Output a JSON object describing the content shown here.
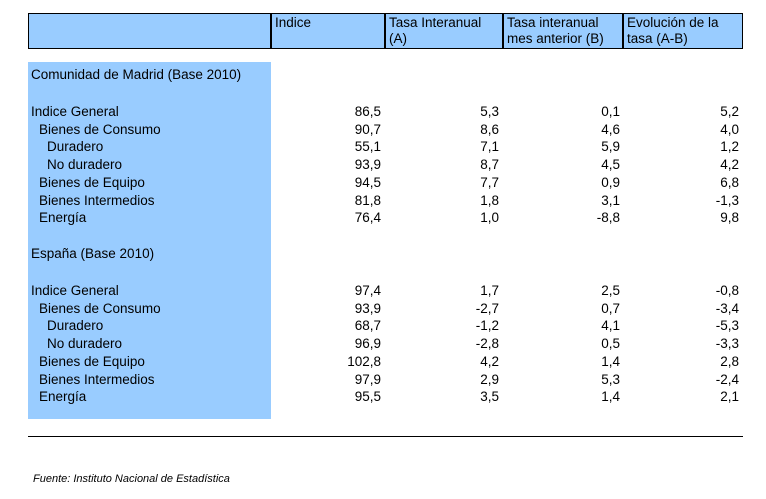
{
  "headers": [
    "",
    "Indice",
    "Tasa Interanual (A)",
    "Tasa interanual mes anterior (B)",
    "Evolución de la tasa (A-B)"
  ],
  "sections": [
    {
      "title": "Comunidad de Madrid (Base 2010)",
      "rows": [
        {
          "label": "Indice General",
          "indent": 0,
          "values": [
            "86,5",
            "5,3",
            "0,1",
            "5,2"
          ]
        },
        {
          "label": "Bienes de Consumo",
          "indent": 1,
          "values": [
            "90,7",
            "8,6",
            "4,6",
            "4,0"
          ]
        },
        {
          "label": "Duradero",
          "indent": 2,
          "values": [
            "55,1",
            "7,1",
            "5,9",
            "1,2"
          ]
        },
        {
          "label": "No duradero",
          "indent": 2,
          "values": [
            "93,9",
            "8,7",
            "4,5",
            "4,2"
          ]
        },
        {
          "label": "Bienes de Equipo",
          "indent": 1,
          "values": [
            "94,5",
            "7,7",
            "0,9",
            "6,8"
          ]
        },
        {
          "label": "Bienes Intermedios",
          "indent": 1,
          "values": [
            "81,8",
            "1,8",
            "3,1",
            "-1,3"
          ]
        },
        {
          "label": "Energía",
          "indent": 1,
          "values": [
            "76,4",
            "1,0",
            "-8,8",
            "9,8"
          ]
        }
      ]
    },
    {
      "title": "España (Base 2010)",
      "rows": [
        {
          "label": "Indice General",
          "indent": 0,
          "values": [
            "97,4",
            "1,7",
            "2,5",
            "-0,8"
          ]
        },
        {
          "label": "Bienes de Consumo",
          "indent": 1,
          "values": [
            "93,9",
            "-2,7",
            "0,7",
            "-3,4"
          ]
        },
        {
          "label": "Duradero",
          "indent": 2,
          "values": [
            "68,7",
            "-1,2",
            "4,1",
            "-5,3"
          ]
        },
        {
          "label": "No duradero",
          "indent": 2,
          "values": [
            "96,9",
            "-2,8",
            "0,5",
            "-3,3"
          ]
        },
        {
          "label": "Bienes de Equipo",
          "indent": 1,
          "values": [
            "102,8",
            "4,2",
            "1,4",
            "2,8"
          ]
        },
        {
          "label": "Bienes Intermedios",
          "indent": 1,
          "values": [
            "97,9",
            "2,9",
            "5,3",
            "-2,4"
          ]
        },
        {
          "label": "Energía",
          "indent": 1,
          "values": [
            "95,5",
            "3,5",
            "1,4",
            "2,1"
          ]
        }
      ]
    }
  ],
  "source": "Fuente: Instituto Nacional de Estadística"
}
